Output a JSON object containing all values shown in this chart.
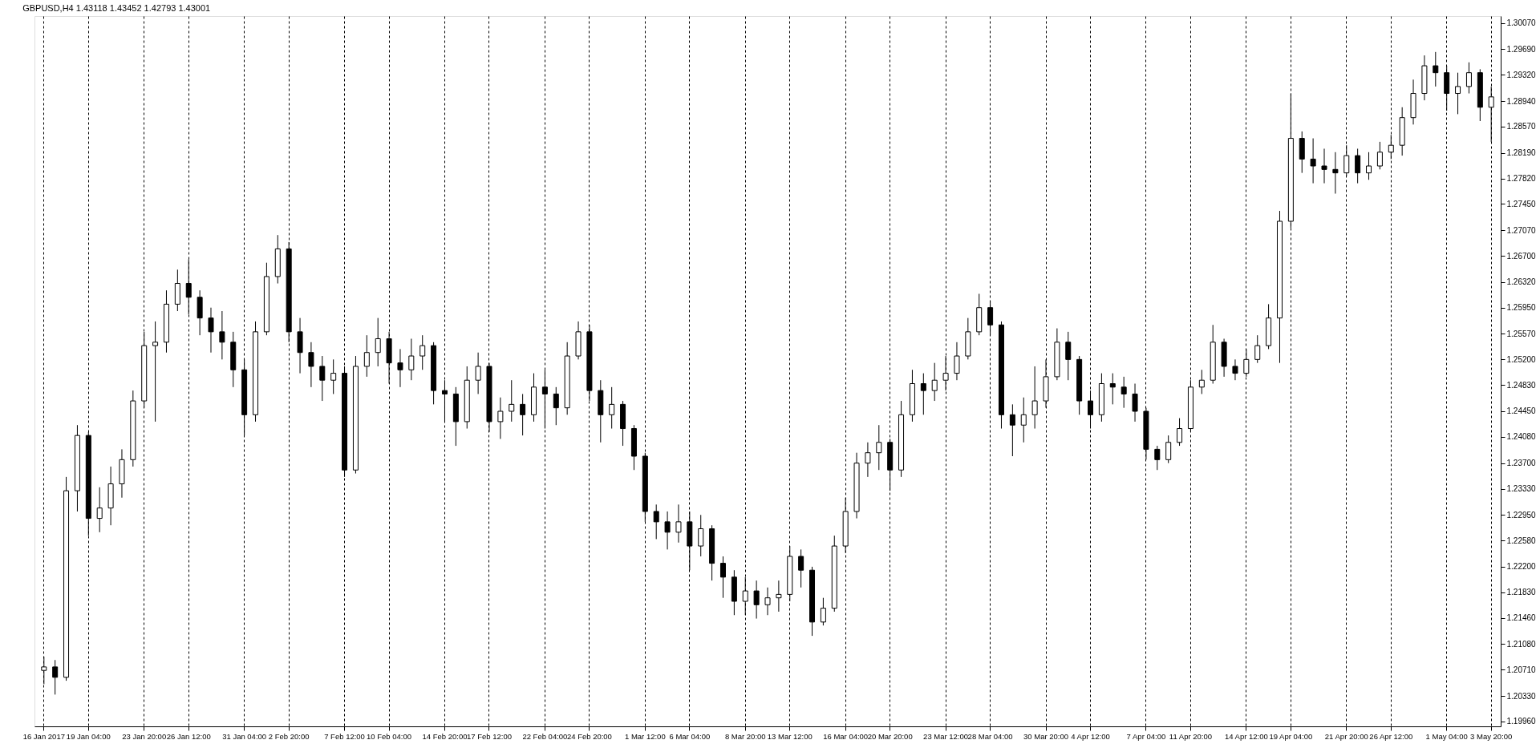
{
  "chart_data": {
    "type": "candlestick",
    "title": "GBPUSD,H4 1.43118 1.43452 1.42793 1.43001",
    "color": "#000000",
    "grid": "x",
    "categories": [
      "16 Jan 2017",
      null,
      null,
      null,
      "19 Jan 04:00",
      null,
      null,
      null,
      null,
      "23 Jan 20:00",
      null,
      null,
      null,
      "26 Jan 12:00",
      null,
      null,
      null,
      null,
      "31 Jan 04:00",
      null,
      null,
      null,
      "2 Feb 20:00",
      null,
      null,
      null,
      null,
      "7 Feb 12:00",
      null,
      null,
      null,
      "10 Feb 04:00",
      null,
      null,
      null,
      null,
      "14 Feb 20:00",
      null,
      null,
      null,
      "17 Feb 12:00",
      null,
      null,
      null,
      null,
      "22 Feb 04:00",
      null,
      null,
      null,
      "24 Feb 20:00",
      null,
      null,
      null,
      null,
      "1 Mar 12:00",
      null,
      null,
      null,
      "6 Mar 04:00",
      null,
      null,
      null,
      null,
      "8 Mar 20:00",
      null,
      null,
      null,
      "13 Mar 12:00",
      null,
      null,
      null,
      null,
      "16 Mar 04:00",
      null,
      null,
      null,
      "20 Mar 20:00",
      null,
      null,
      null,
      null,
      "23 Mar 12:00",
      null,
      null,
      null,
      "28 Mar 04:00",
      null,
      null,
      null,
      null,
      "30 Mar 20:00",
      null,
      null,
      null,
      "4 Apr 12:00",
      null,
      null,
      null,
      null,
      "7 Apr 04:00",
      null,
      null,
      null,
      "11 Apr 20:00",
      null,
      null,
      null,
      null,
      "14 Apr 12:00",
      null,
      null,
      null,
      "19 Apr 04:00",
      null,
      null,
      null,
      null,
      "21 Apr 20:00",
      null,
      null,
      null,
      "26 Apr 12:00",
      null,
      null,
      null,
      null,
      "1 May 04:00",
      null,
      null,
      null,
      "3 May 20:00"
    ],
    "ohlc": [
      [
        1.207,
        1.209,
        1.205,
        1.2075
      ],
      [
        1.2075,
        1.2085,
        1.2035,
        1.206
      ],
      [
        1.206,
        1.235,
        1.2055,
        1.233
      ],
      [
        1.233,
        1.2425,
        1.23,
        1.241
      ],
      [
        1.241,
        1.2415,
        1.2265,
        1.229
      ],
      [
        1.229,
        1.2335,
        1.227,
        1.2305
      ],
      [
        1.2305,
        1.2365,
        1.228,
        1.234
      ],
      [
        1.234,
        1.239,
        1.232,
        1.2375
      ],
      [
        1.2375,
        1.2475,
        1.2365,
        1.246
      ],
      [
        1.246,
        1.256,
        1.245,
        1.254
      ],
      [
        1.254,
        1.2575,
        1.243,
        1.2545
      ],
      [
        1.2545,
        1.262,
        1.253,
        1.26
      ],
      [
        1.26,
        1.265,
        1.259,
        1.263
      ],
      [
        1.263,
        1.2665,
        1.2585,
        1.261
      ],
      [
        1.261,
        1.262,
        1.2555,
        1.258
      ],
      [
        1.258,
        1.2595,
        1.253,
        1.256
      ],
      [
        1.256,
        1.259,
        1.252,
        1.2545
      ],
      [
        1.2545,
        1.256,
        1.248,
        1.2505
      ],
      [
        1.2505,
        1.252,
        1.241,
        1.244
      ],
      [
        1.244,
        1.2575,
        1.243,
        1.256
      ],
      [
        1.256,
        1.266,
        1.2555,
        1.264
      ],
      [
        1.264,
        1.27,
        1.263,
        1.268
      ],
      [
        1.268,
        1.269,
        1.2545,
        1.256
      ],
      [
        1.256,
        1.258,
        1.25,
        1.253
      ],
      [
        1.253,
        1.2545,
        1.248,
        1.251
      ],
      [
        1.251,
        1.2525,
        1.246,
        1.249
      ],
      [
        1.249,
        1.252,
        1.247,
        1.25
      ],
      [
        1.25,
        1.251,
        1.235,
        1.236
      ],
      [
        1.236,
        1.2525,
        1.2355,
        1.251
      ],
      [
        1.251,
        1.2555,
        1.2495,
        1.253
      ],
      [
        1.253,
        1.258,
        1.251,
        1.255
      ],
      [
        1.255,
        1.256,
        1.2485,
        1.2515
      ],
      [
        1.2515,
        1.2535,
        1.248,
        1.2505
      ],
      [
        1.2505,
        1.255,
        1.249,
        1.2525
      ],
      [
        1.2525,
        1.2555,
        1.2505,
        1.254
      ],
      [
        1.254,
        1.2545,
        1.2455,
        1.2475
      ],
      [
        1.2475,
        1.249,
        1.243,
        1.247
      ],
      [
        1.247,
        1.248,
        1.2395,
        1.243
      ],
      [
        1.243,
        1.251,
        1.242,
        1.249
      ],
      [
        1.249,
        1.253,
        1.247,
        1.251
      ],
      [
        1.251,
        1.2515,
        1.2415,
        1.243
      ],
      [
        1.243,
        1.2465,
        1.2405,
        1.2445
      ],
      [
        1.2445,
        1.249,
        1.243,
        1.2455
      ],
      [
        1.2455,
        1.247,
        1.241,
        1.244
      ],
      [
        1.244,
        1.25,
        1.243,
        1.248
      ],
      [
        1.248,
        1.2505,
        1.242,
        1.247
      ],
      [
        1.247,
        1.248,
        1.2425,
        1.245
      ],
      [
        1.245,
        1.2545,
        1.244,
        1.2525
      ],
      [
        1.2525,
        1.2575,
        1.252,
        1.256
      ],
      [
        1.256,
        1.257,
        1.246,
        1.2475
      ],
      [
        1.2475,
        1.249,
        1.24,
        1.244
      ],
      [
        1.244,
        1.248,
        1.242,
        1.2455
      ],
      [
        1.2455,
        1.246,
        1.2395,
        1.242
      ],
      [
        1.242,
        1.2425,
        1.236,
        1.238
      ],
      [
        1.238,
        1.2385,
        1.2285,
        1.23
      ],
      [
        1.23,
        1.231,
        1.226,
        1.2285
      ],
      [
        1.2285,
        1.23,
        1.2245,
        1.227
      ],
      [
        1.227,
        1.231,
        1.2255,
        1.2285
      ],
      [
        1.2285,
        1.23,
        1.2215,
        1.225
      ],
      [
        1.225,
        1.2295,
        1.2235,
        1.2275
      ],
      [
        1.2275,
        1.228,
        1.22,
        1.2225
      ],
      [
        1.2225,
        1.2235,
        1.2175,
        1.2205
      ],
      [
        1.2205,
        1.2215,
        1.215,
        1.217
      ],
      [
        1.217,
        1.2205,
        1.215,
        1.2185
      ],
      [
        1.2185,
        1.22,
        1.2145,
        1.2165
      ],
      [
        1.2165,
        1.219,
        1.215,
        1.2175
      ],
      [
        1.2175,
        1.22,
        1.2155,
        1.218
      ],
      [
        1.218,
        1.225,
        1.217,
        1.2235
      ],
      [
        1.2235,
        1.2245,
        1.219,
        1.2215
      ],
      [
        1.2215,
        1.222,
        1.212,
        1.214
      ],
      [
        1.214,
        1.2175,
        1.2135,
        1.216
      ],
      [
        1.216,
        1.2265,
        1.2155,
        1.225
      ],
      [
        1.225,
        1.232,
        1.224,
        1.23
      ],
      [
        1.23,
        1.2385,
        1.229,
        1.237
      ],
      [
        1.237,
        1.24,
        1.235,
        1.2385
      ],
      [
        1.2385,
        1.2425,
        1.236,
        1.24
      ],
      [
        1.24,
        1.2405,
        1.233,
        1.236
      ],
      [
        1.236,
        1.246,
        1.235,
        1.244
      ],
      [
        1.244,
        1.2505,
        1.243,
        1.2485
      ],
      [
        1.2485,
        1.25,
        1.244,
        1.2475
      ],
      [
        1.2475,
        1.2515,
        1.246,
        1.249
      ],
      [
        1.249,
        1.2525,
        1.2475,
        1.25
      ],
      [
        1.25,
        1.2545,
        1.249,
        1.2525
      ],
      [
        1.2525,
        1.258,
        1.252,
        1.256
      ],
      [
        1.256,
        1.2615,
        1.2555,
        1.2595
      ],
      [
        1.2595,
        1.2605,
        1.2555,
        1.257
      ],
      [
        1.257,
        1.2575,
        1.242,
        1.244
      ],
      [
        1.244,
        1.2455,
        1.238,
        1.2425
      ],
      [
        1.2425,
        1.2465,
        1.24,
        1.244
      ],
      [
        1.244,
        1.251,
        1.242,
        1.246
      ],
      [
        1.246,
        1.252,
        1.245,
        1.2495
      ],
      [
        1.2495,
        1.2565,
        1.249,
        1.2545
      ],
      [
        1.2545,
        1.256,
        1.249,
        1.252
      ],
      [
        1.252,
        1.2525,
        1.244,
        1.246
      ],
      [
        1.246,
        1.2475,
        1.242,
        1.244
      ],
      [
        1.244,
        1.25,
        1.243,
        1.2485
      ],
      [
        1.2485,
        1.25,
        1.2455,
        1.248
      ],
      [
        1.248,
        1.2495,
        1.245,
        1.247
      ],
      [
        1.247,
        1.2485,
        1.243,
        1.2445
      ],
      [
        1.2445,
        1.245,
        1.2375,
        1.239
      ],
      [
        1.239,
        1.2395,
        1.236,
        1.2375
      ],
      [
        1.2375,
        1.241,
        1.237,
        1.24
      ],
      [
        1.24,
        1.2435,
        1.2395,
        1.242
      ],
      [
        1.242,
        1.249,
        1.2415,
        1.248
      ],
      [
        1.248,
        1.2505,
        1.247,
        1.249
      ],
      [
        1.249,
        1.257,
        1.2485,
        1.2545
      ],
      [
        1.2545,
        1.255,
        1.2495,
        1.251
      ],
      [
        1.251,
        1.252,
        1.249,
        1.25
      ],
      [
        1.25,
        1.2535,
        1.2495,
        1.252
      ],
      [
        1.252,
        1.2555,
        1.2515,
        1.254
      ],
      [
        1.254,
        1.26,
        1.2535,
        1.258
      ],
      [
        1.258,
        1.2735,
        1.2515,
        1.272
      ],
      [
        1.272,
        1.2905,
        1.271,
        1.284
      ],
      [
        1.284,
        1.285,
        1.279,
        1.281
      ],
      [
        1.281,
        1.284,
        1.2775,
        1.28
      ],
      [
        1.28,
        1.2825,
        1.2775,
        1.2795
      ],
      [
        1.2795,
        1.282,
        1.276,
        1.279
      ],
      [
        1.279,
        1.283,
        1.2785,
        1.2815
      ],
      [
        1.2815,
        1.2825,
        1.2775,
        1.279
      ],
      [
        1.279,
        1.282,
        1.278,
        1.28
      ],
      [
        1.28,
        1.2835,
        1.2795,
        1.282
      ],
      [
        1.282,
        1.2845,
        1.281,
        1.283
      ],
      [
        1.283,
        1.2885,
        1.2815,
        1.287
      ],
      [
        1.287,
        1.2925,
        1.286,
        1.2905
      ],
      [
        1.2905,
        1.296,
        1.2895,
        1.2945
      ],
      [
        1.2945,
        1.2965,
        1.2915,
        1.2935
      ],
      [
        1.2935,
        1.2945,
        1.288,
        1.2905
      ],
      [
        1.2905,
        1.2935,
        1.2875,
        1.2915
      ],
      [
        1.2915,
        1.295,
        1.2905,
        1.2935
      ],
      [
        1.2935,
        1.294,
        1.2865,
        1.2885
      ],
      [
        1.2885,
        1.2915,
        1.2835,
        1.29
      ]
    ],
    "ylim": [
      1.1989,
      1.3017
    ],
    "yticks": [
      {
        "value": 1.3007,
        "label": "1.30070"
      },
      {
        "value": 1.2969,
        "label": "1.29690"
      },
      {
        "value": 1.2932,
        "label": "1.29320"
      },
      {
        "value": 1.2894,
        "label": "1.28940"
      },
      {
        "value": 1.2857,
        "label": "1.28570"
      },
      {
        "value": 1.2819,
        "label": "1.28190"
      },
      {
        "value": 1.2782,
        "label": "1.27820"
      },
      {
        "value": 1.2745,
        "label": "1.27450"
      },
      {
        "value": 1.2707,
        "label": "1.27070"
      },
      {
        "value": 1.267,
        "label": "1.26700"
      },
      {
        "value": 1.2632,
        "label": "1.26320"
      },
      {
        "value": 1.2595,
        "label": "1.25950"
      },
      {
        "value": 1.2557,
        "label": "1.25570"
      },
      {
        "value": 1.252,
        "label": "1.25200"
      },
      {
        "value": 1.2483,
        "label": "1.24830"
      },
      {
        "value": 1.2445,
        "label": "1.24450"
      },
      {
        "value": 1.2408,
        "label": "1.24080"
      },
      {
        "value": 1.237,
        "label": "1.23700"
      },
      {
        "value": 1.2333,
        "label": "1.23330"
      },
      {
        "value": 1.2295,
        "label": "1.22950"
      },
      {
        "value": 1.2258,
        "label": "1.22580"
      },
      {
        "value": 1.222,
        "label": "1.22200"
      },
      {
        "value": 1.2183,
        "label": "1.21830"
      },
      {
        "value": 1.2146,
        "label": "1.21460"
      },
      {
        "value": 1.2108,
        "label": "1.21080"
      },
      {
        "value": 1.2071,
        "label": "1.20710"
      },
      {
        "value": 1.2033,
        "label": "1.20330"
      },
      {
        "value": 1.1996,
        "label": "1.19960"
      }
    ]
  }
}
